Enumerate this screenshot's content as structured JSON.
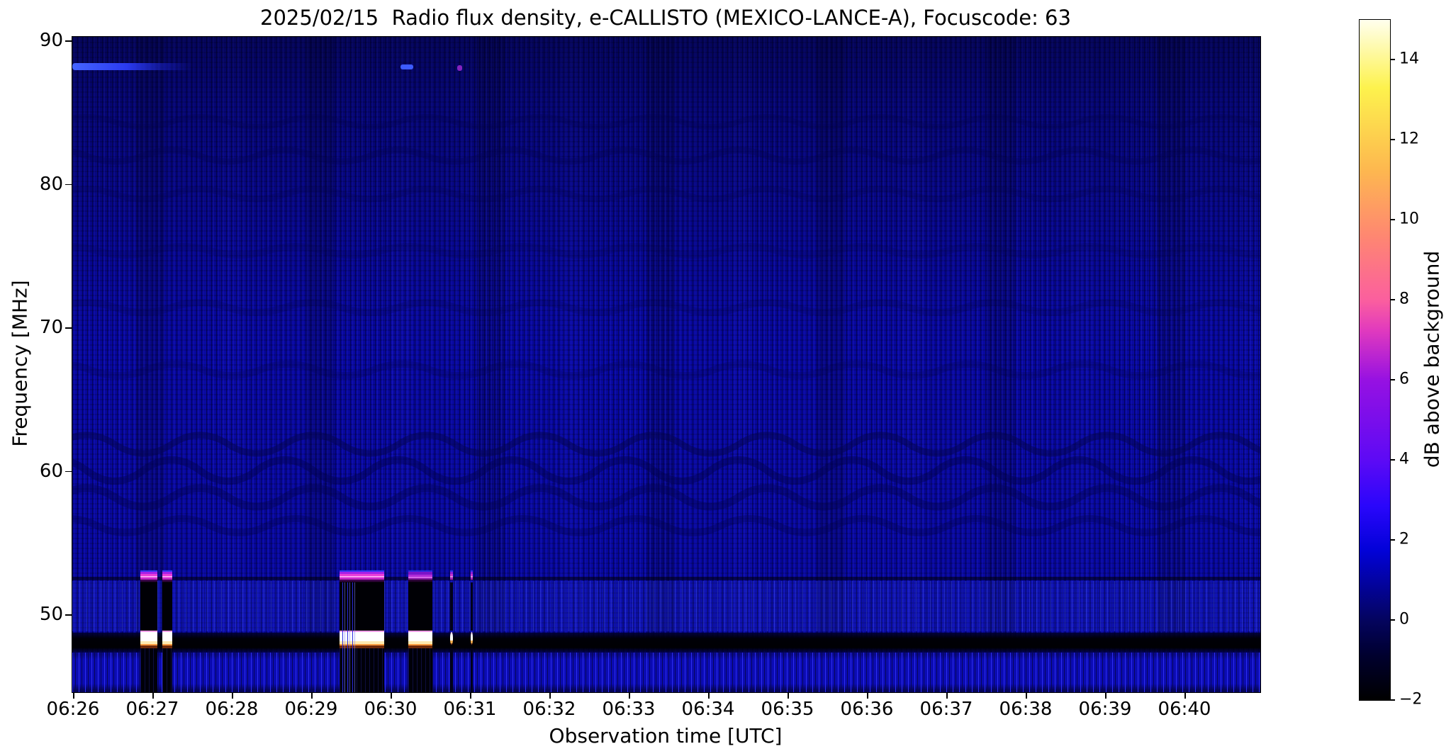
{
  "title": "2025/02/15  Radio flux density, e-CALLISTO (MEXICO-LANCE-A), Focuscode: 63",
  "chart_data": {
    "type": "heatmap",
    "subtype": "solar-radio-spectrogram",
    "instrument": "e-CALLISTO (MEXICO-LANCE-A)",
    "date": "2025/02/15",
    "focuscode": "63",
    "xlabel": "Observation time [UTC]",
    "ylabel": "Frequency [MHz]",
    "x_ticks": [
      "06:26",
      "06:27",
      "06:28",
      "06:29",
      "06:30",
      "06:31",
      "06:32",
      "06:33",
      "06:34",
      "06:35",
      "06:36",
      "06:37",
      "06:38",
      "06:39",
      "06:40"
    ],
    "x_range_utc": [
      "06:26:00",
      "06:41:00"
    ],
    "y_ticks": [
      90,
      80,
      70,
      60,
      50
    ],
    "y_range_mhz": [
      44.6,
      90.3
    ],
    "grid": false,
    "colorbar": {
      "label": "dB above background",
      "tick_values": [
        14,
        12,
        10,
        8,
        6,
        4,
        2,
        0,
        -2
      ],
      "tick_labels": [
        "14",
        "12",
        "10",
        "8",
        "6",
        "4",
        "2",
        "0",
        "−2"
      ],
      "range_db": [
        -2,
        15
      ],
      "colormap": "gnuplot2-like: black → dark blue → blue → violet → magenta → pink → orange → yellow → white",
      "stops": [
        "#000000",
        "#04045f",
        "#0202d8",
        "#5d0af5",
        "#9611e2",
        "#e23bbd",
        "#fb5f9e",
        "#fe8672",
        "#fdb84f",
        "#fdf24d",
        "#ffffee"
      ]
    },
    "background": {
      "base_level_db": 0.5,
      "appearance": "dark navy-blue noise with fine vertical channel striping and faint wavy interference ripples; upper half (65–90 MHz) slightly darker",
      "base_color": "#07079b"
    },
    "bands": [
      {
        "name": "fm-streak",
        "freq_mhz": 88.3,
        "time_range_utc": [
          "06:26:00",
          "06:26:55"
        ],
        "appearance": "bright blue horizontal streak, fades to the right"
      },
      {
        "name": "fm-dot",
        "freq_mhz": 88.3,
        "time_utc": "06:30:08",
        "appearance": "small bright blue dash"
      },
      {
        "name": "faint-dark-line",
        "freq_mhz": 52.7,
        "extent": "full width",
        "appearance": "thin darker horizontal line"
      },
      {
        "name": "bright-channel-band",
        "freq_range_mhz": [
          49.2,
          52.4
        ],
        "extent": "full width",
        "appearance": "slightly brighter blue band with vertical striping"
      },
      {
        "name": "rfi-absorption-band",
        "freq_mhz": 48.5,
        "freq_range_mhz": [
          47.5,
          48.9
        ],
        "extent": "full width",
        "appearance": "black horizontal band"
      },
      {
        "name": "bottom-bright-striped",
        "freq_range_mhz": [
          44.6,
          47.5
        ],
        "extent": "full width",
        "appearance": "brighter blue with strong vertical stripes"
      }
    ],
    "bursts": [
      {
        "id": "burst-0627a",
        "start_utc": "06:26:50",
        "end_utc": "06:27:03",
        "start_min": 0.84,
        "end_min": 1.05,
        "style": "strong",
        "freq_range_mhz": [
          44.6,
          53.2
        ],
        "core_freq_mhz": [
          47.9,
          49.0
        ],
        "peak_db": 15
      },
      {
        "id": "burst-0627b",
        "start_utc": "06:27:07",
        "end_utc": "06:27:14",
        "start_min": 1.12,
        "end_min": 1.24,
        "style": "strong",
        "freq_range_mhz": [
          44.6,
          53.2
        ],
        "core_freq_mhz": [
          47.9,
          49.0
        ],
        "peak_db": 15
      },
      {
        "id": "burst-0629",
        "start_utc": "06:29:21",
        "end_utc": "06:29:55",
        "start_min": 3.35,
        "end_min": 3.91,
        "style": "strong",
        "lines": true,
        "freq_range_mhz": [
          44.6,
          53.2
        ],
        "core_freq_mhz": [
          47.9,
          49.0
        ],
        "peak_db": 15
      },
      {
        "id": "burst-0630a",
        "start_utc": "06:30:13",
        "end_utc": "06:30:31",
        "start_min": 4.21,
        "end_min": 4.52,
        "style": "dim",
        "freq_range_mhz": [
          44.6,
          53.2
        ],
        "core_freq_mhz": [
          47.9,
          49.0
        ],
        "peak_db": 15
      },
      {
        "id": "burst-0630b",
        "start_utc": "06:30:44",
        "end_utc": "06:30:47",
        "start_min": 4.74,
        "end_min": 4.78,
        "style": "thin",
        "freq_range_mhz": [
          44.6,
          53.0
        ],
        "core_freq_mhz": [
          48.0,
          48.9
        ],
        "peak_db": 12
      },
      {
        "id": "burst-0631",
        "start_utc": "06:31:00",
        "end_utc": "06:31:02",
        "start_min": 5.0,
        "end_min": 5.03,
        "style": "thin",
        "freq_range_mhz": [
          44.6,
          53.0
        ],
        "core_freq_mhz": [
          48.0,
          48.9
        ],
        "peak_db": 12
      }
    ],
    "burst_structure": {
      "cap_freq_mhz": [
        52.3,
        53.2
      ],
      "cap_colors": "magenta/violet with white core",
      "body": "saturated black column",
      "core_freq_mhz": [
        47.9,
        49.0
      ],
      "core_colors": "white with yellow-orange lower fringe and pink edges"
    }
  }
}
